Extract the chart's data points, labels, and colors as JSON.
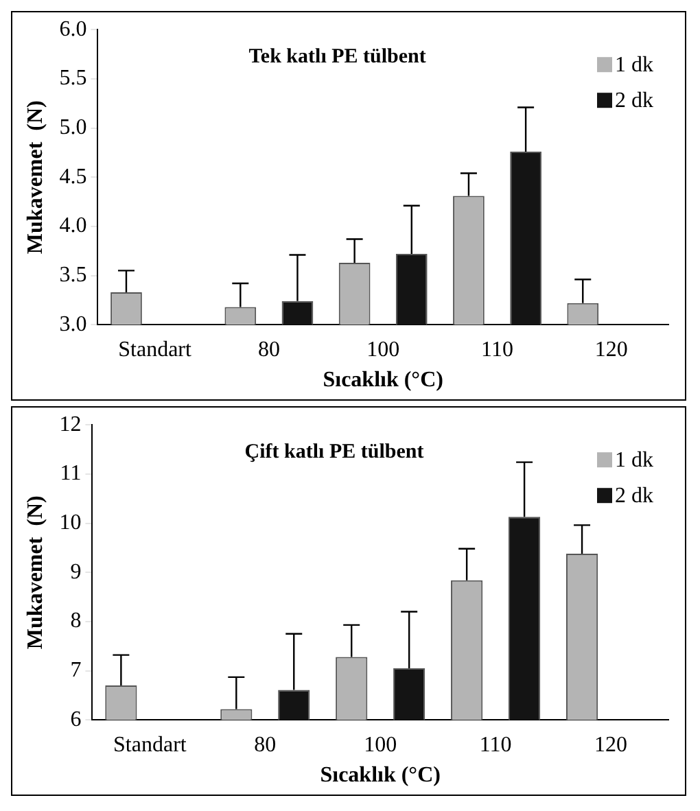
{
  "chart_data": [
    {
      "type": "bar",
      "title": "Tek katlı PE tülbent",
      "xlabel": "Sıcaklık (°C)",
      "ylabel": "Mukavemet  (N)",
      "categories": [
        "Standart",
        "80",
        "100",
        "110",
        "120"
      ],
      "series": [
        {
          "name": "1 dk",
          "color": "#b4b4b4",
          "values": [
            3.33,
            3.18,
            3.63,
            4.31,
            3.22
          ],
          "errors": [
            [
              3.33,
              3.55
            ],
            [
              3.18,
              3.42
            ],
            [
              3.63,
              3.87
            ],
            [
              4.31,
              4.54
            ],
            [
              3.22,
              3.46
            ]
          ]
        },
        {
          "name": "2 dk",
          "color": "#141414",
          "values": [
            null,
            3.24,
            3.72,
            4.76,
            null
          ],
          "errors": [
            null,
            [
              3.24,
              3.71
            ],
            [
              3.72,
              4.21
            ],
            [
              4.76,
              5.21
            ],
            null
          ]
        }
      ],
      "ylim": [
        3,
        6
      ],
      "yticks": [
        {
          "value": 3,
          "label": "3.0"
        },
        {
          "value": 3.5,
          "label": "3.5"
        },
        {
          "value": 4,
          "label": "4.0"
        },
        {
          "value": 4.5,
          "label": "4.5"
        },
        {
          "value": 5,
          "label": "5.0"
        },
        {
          "value": 5.5,
          "label": "5.5"
        },
        {
          "value": 6,
          "label": "6.0"
        }
      ],
      "grid": false,
      "legend": "top right"
    },
    {
      "type": "bar",
      "title": "Çift katlı PE tülbent",
      "xlabel": "Sıcaklık (°C)",
      "ylabel": "Mukavemet  (N)",
      "categories": [
        "Standart",
        "80",
        "100",
        "110",
        "120"
      ],
      "series": [
        {
          "name": "1 dk",
          "color": "#b4b4b4",
          "values": [
            6.7,
            6.22,
            7.28,
            8.84,
            9.38
          ],
          "errors": [
            [
              6.7,
              7.32
            ],
            [
              6.22,
              6.87
            ],
            [
              7.28,
              7.93
            ],
            [
              8.84,
              9.48
            ],
            [
              9.38,
              9.96
            ]
          ]
        },
        {
          "name": "2 dk",
          "color": "#141414",
          "values": [
            null,
            6.61,
            7.05,
            10.13,
            null
          ],
          "errors": [
            null,
            [
              6.61,
              7.75
            ],
            [
              7.05,
              8.2
            ],
            [
              10.13,
              11.24
            ],
            null
          ]
        }
      ],
      "ylim": [
        6,
        12
      ],
      "yticks": [
        6,
        7,
        8,
        9,
        10,
        11,
        12
      ],
      "grid": false,
      "legend": "top right"
    }
  ]
}
